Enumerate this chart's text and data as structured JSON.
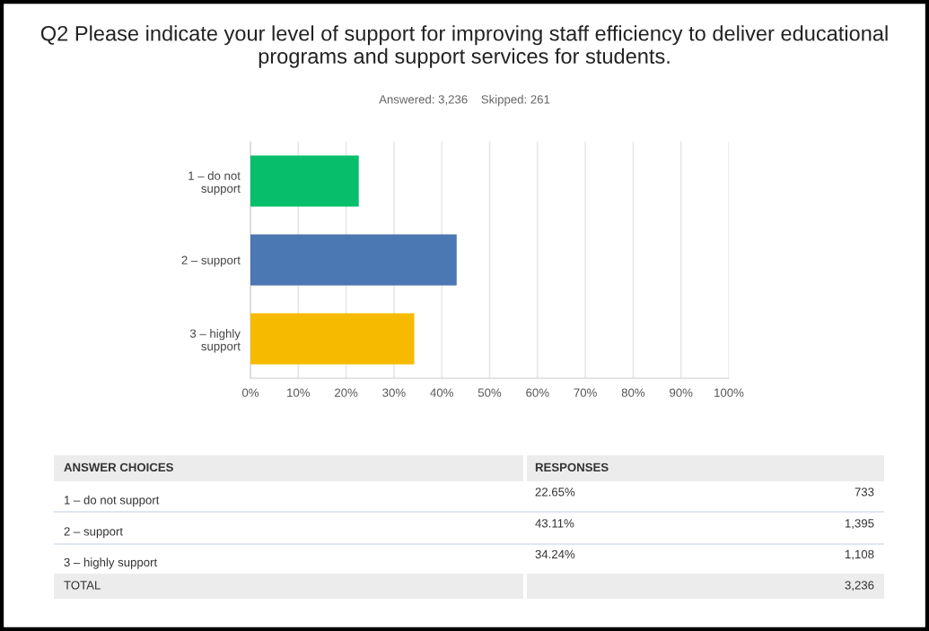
{
  "chart_data": {
    "type": "bar",
    "orientation": "horizontal",
    "title": "Q2 Please indicate your level of support for improving staff efficiency to deliver educational programs and support services for students.",
    "subtitle": "Answered: 3,236    Skipped: 261",
    "categories": [
      "1 – do not support",
      "2 – support",
      "3 – highly support"
    ],
    "values": [
      22.65,
      43.11,
      34.24
    ],
    "colors": [
      "#07bf6b",
      "#4b77b2",
      "#f6bb00"
    ],
    "xlim": [
      0,
      100
    ],
    "xticks": [
      {
        "value": 0,
        "label": "0%"
      },
      {
        "value": 10,
        "label": "10%"
      },
      {
        "value": 20,
        "label": "20%"
      },
      {
        "value": 30,
        "label": "30%"
      },
      {
        "value": 40,
        "label": "40%"
      },
      {
        "value": 50,
        "label": "50%"
      },
      {
        "value": 60,
        "label": "60%"
      },
      {
        "value": 70,
        "label": "70%"
      },
      {
        "value": 80,
        "label": "80%"
      },
      {
        "value": 90,
        "label": "90%"
      },
      {
        "value": 100,
        "label": "100%"
      }
    ],
    "grid": "x",
    "annotations": [
      "ANSWER CHOICES",
      "RESPONSES",
      "22.65%",
      "733",
      "43.11%",
      "1,395",
      "34.24%",
      "1,108",
      "TOTAL",
      "3,236"
    ]
  }
}
